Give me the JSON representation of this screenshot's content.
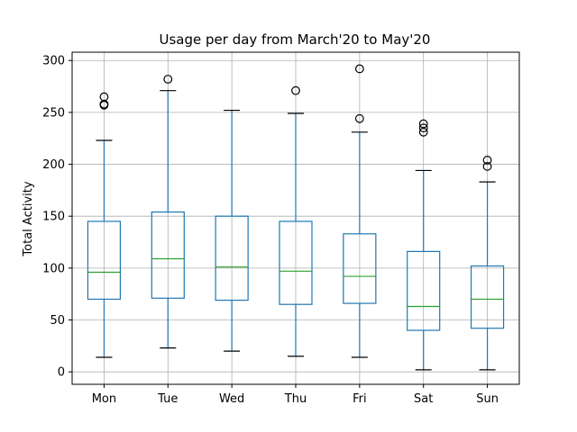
{
  "chart_data": {
    "type": "box",
    "title": "Usage per day from March'20 to May'20",
    "xlabel": "",
    "ylabel": "Total Activity",
    "ylim": [
      -12,
      308
    ],
    "yticks": [
      0,
      50,
      100,
      150,
      200,
      250,
      300
    ],
    "grid": true,
    "categories": [
      "Mon",
      "Tue",
      "Wed",
      "Thu",
      "Fri",
      "Sat",
      "Sun"
    ],
    "boxes": [
      {
        "category": "Mon",
        "whisker_low": 14,
        "q1": 70,
        "median": 96,
        "q3": 145,
        "whisker_high": 223,
        "outliers": [
          257,
          258,
          265
        ]
      },
      {
        "category": "Tue",
        "whisker_low": 23,
        "q1": 71,
        "median": 109,
        "q3": 154,
        "whisker_high": 271,
        "outliers": [
          282
        ]
      },
      {
        "category": "Wed",
        "whisker_low": 20,
        "q1": 69,
        "median": 101,
        "q3": 150,
        "whisker_high": 252,
        "outliers": []
      },
      {
        "category": "Thu",
        "whisker_low": 15,
        "q1": 65,
        "median": 97,
        "q3": 145,
        "whisker_high": 249,
        "outliers": [
          271
        ]
      },
      {
        "category": "Fri",
        "whisker_low": 14,
        "q1": 66,
        "median": 92,
        "q3": 133,
        "whisker_high": 231,
        "outliers": [
          244,
          292
        ]
      },
      {
        "category": "Sat",
        "whisker_low": 2,
        "q1": 40,
        "median": 63,
        "q3": 116,
        "whisker_high": 194,
        "outliers": [
          231,
          235,
          239
        ]
      },
      {
        "category": "Sun",
        "whisker_low": 2,
        "q1": 42,
        "median": 70,
        "q3": 102,
        "whisker_high": 183,
        "outliers": [
          198,
          204
        ]
      }
    ],
    "colors": {
      "box": "#1f77b4",
      "median": "#2ca02c",
      "cap": "#000000",
      "grid": "#b0b0b0",
      "outlier": "#000000"
    }
  }
}
